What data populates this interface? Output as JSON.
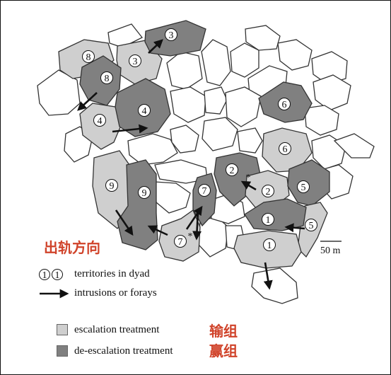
{
  "territories": [
    {
      "id": "8",
      "group": "escalation"
    },
    {
      "id": "3",
      "group": "escalation"
    },
    {
      "id": "3",
      "group": "de-escalation"
    },
    {
      "id": "8",
      "group": "de-escalation"
    },
    {
      "id": "4",
      "group": "escalation"
    },
    {
      "id": "4",
      "group": "de-escalation"
    },
    {
      "id": "6",
      "group": "de-escalation"
    },
    {
      "id": "6",
      "group": "escalation"
    },
    {
      "id": "9",
      "group": "escalation"
    },
    {
      "id": "9",
      "group": "de-escalation"
    },
    {
      "id": "2",
      "group": "de-escalation"
    },
    {
      "id": "2",
      "group": "escalation"
    },
    {
      "id": "7",
      "group": "de-escalation"
    },
    {
      "id": "7",
      "group": "escalation"
    },
    {
      "id": "5",
      "group": "de-escalation"
    },
    {
      "id": "5",
      "group": "escalation"
    },
    {
      "id": "1",
      "group": "de-escalation"
    },
    {
      "id": "1",
      "group": "escalation"
    }
  ],
  "asterisk": "*",
  "scale_label": "50 m",
  "side_label_cn": "出轨方向",
  "legend": {
    "dyad_symbol_a": "1",
    "dyad_symbol_b": "1",
    "dyad_label": "territories in dyad",
    "arrow_label": "intrusions or forays",
    "escalation_label": "escalation treatment",
    "deescalation_label": "de-escalation treatment",
    "escalation_cn": "输组",
    "deescalation_cn": "赢组"
  },
  "colors": {
    "escalation": "#cfcfcf",
    "de-escalation": "#808080",
    "neutral": "#ffffff",
    "accent_red": "#d0432a",
    "outline": "#333333"
  }
}
